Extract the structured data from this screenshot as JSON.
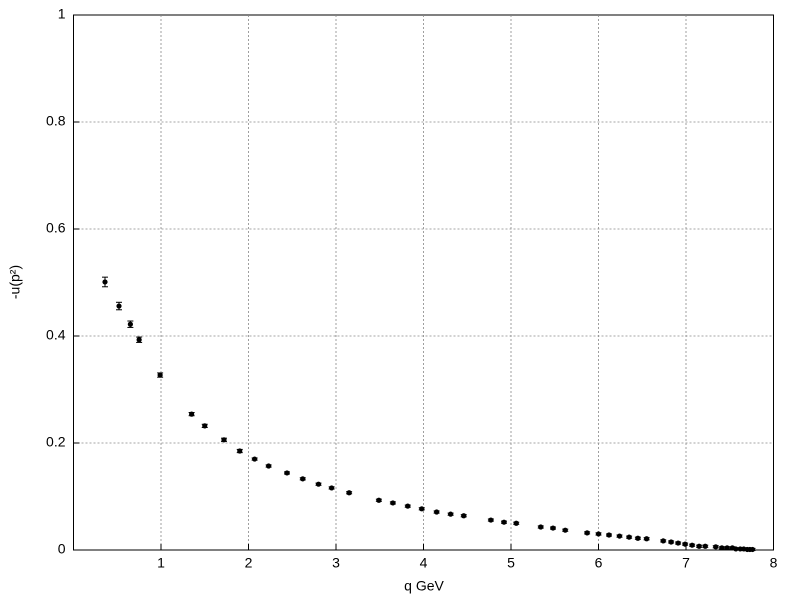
{
  "chart_data": {
    "type": "scatter",
    "xlabel": "q GeV",
    "ylabel": "-u(p²)",
    "xlim": [
      0,
      8
    ],
    "xticks": [
      1,
      2,
      3,
      4,
      5,
      6,
      7,
      8
    ],
    "ylim": [
      0,
      1
    ],
    "yticks": [
      0,
      0.2,
      0.4,
      0.6,
      0.8,
      1
    ],
    "grid": true,
    "color": "#000000",
    "x": [
      0.36,
      0.52,
      0.65,
      0.75,
      0.99,
      1.35,
      1.5,
      1.72,
      1.9,
      2.07,
      2.23,
      2.44,
      2.62,
      2.8,
      2.95,
      3.15,
      3.49,
      3.65,
      3.82,
      3.98,
      4.15,
      4.31,
      4.46,
      4.77,
      4.92,
      5.06,
      5.34,
      5.48,
      5.62,
      5.87,
      6.0,
      6.12,
      6.24,
      6.35,
      6.45,
      6.55,
      6.74,
      6.83,
      6.91,
      6.99,
      7.07,
      7.15,
      7.22,
      7.34,
      7.41,
      7.47,
      7.53,
      7.57,
      7.62,
      7.66,
      7.7,
      7.73,
      7.76
    ],
    "values": [
      0.501,
      0.456,
      0.422,
      0.393,
      0.327,
      0.254,
      0.232,
      0.206,
      0.185,
      0.17,
      0.157,
      0.144,
      0.133,
      0.123,
      0.116,
      0.107,
      0.093,
      0.088,
      0.082,
      0.077,
      0.071,
      0.067,
      0.064,
      0.056,
      0.052,
      0.05,
      0.043,
      0.041,
      0.037,
      0.032,
      0.03,
      0.028,
      0.026,
      0.024,
      0.022,
      0.021,
      0.017,
      0.015,
      0.013,
      0.011,
      0.009,
      0.007,
      0.007,
      0.006,
      0.004,
      0.004,
      0.004,
      0.002,
      0.002,
      0.002,
      0.001,
      0.001,
      0.001
    ],
    "errors": [
      0.009,
      0.007,
      0.006,
      0.005,
      0.004,
      0.003,
      0.003,
      0.003,
      0.003,
      0.002,
      0.002,
      0.002,
      0.002,
      0.002,
      0.002,
      0.002,
      0.002,
      0.002,
      0.002,
      0.002,
      0.002,
      0.002,
      0.002,
      0.002,
      0.002,
      0.002,
      0.002,
      0.002,
      0.002,
      0.002,
      0.002,
      0.002,
      0.002,
      0.002,
      0.002,
      0.002,
      0.002,
      0.002,
      0.002,
      0.002,
      0.002,
      0.002,
      0.002,
      0.002,
      0.002,
      0.002,
      0.002,
      0.002,
      0.002,
      0.002,
      0.002,
      0.002,
      0.002
    ]
  }
}
